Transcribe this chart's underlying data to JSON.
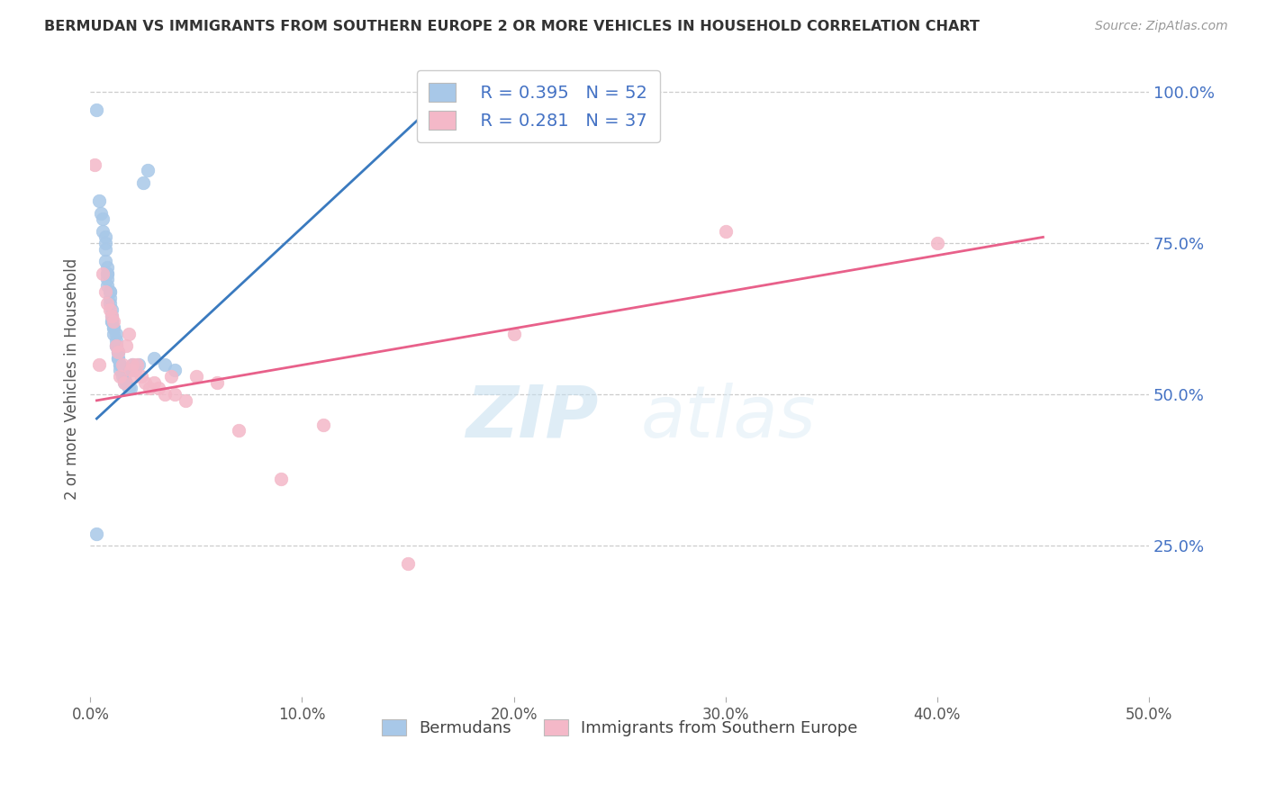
{
  "title": "BERMUDAN VS IMMIGRANTS FROM SOUTHERN EUROPE 2 OR MORE VEHICLES IN HOUSEHOLD CORRELATION CHART",
  "source": "Source: ZipAtlas.com",
  "ylabel": "2 or more Vehicles in Household",
  "xlim": [
    0.0,
    0.5
  ],
  "ylim": [
    0.0,
    1.05
  ],
  "xtick_labels": [
    "0.0%",
    "10.0%",
    "20.0%",
    "30.0%",
    "40.0%",
    "50.0%"
  ],
  "xtick_vals": [
    0.0,
    0.1,
    0.2,
    0.3,
    0.4,
    0.5
  ],
  "ytick_labels_right": [
    "100.0%",
    "75.0%",
    "50.0%",
    "25.0%"
  ],
  "ytick_vals_right": [
    1.0,
    0.75,
    0.5,
    0.25
  ],
  "legend_blue_r": "R = 0.395",
  "legend_blue_n": "N = 52",
  "legend_pink_r": "R = 0.281",
  "legend_pink_n": "N = 37",
  "legend_label_blue": "Bermudans",
  "legend_label_pink": "Immigrants from Southern Europe",
  "blue_color": "#a8c8e8",
  "pink_color": "#f4b8c8",
  "blue_line_color": "#3a7abf",
  "pink_line_color": "#e8608a",
  "blue_scatter_x": [
    0.003,
    0.004,
    0.005,
    0.006,
    0.006,
    0.007,
    0.007,
    0.007,
    0.007,
    0.008,
    0.008,
    0.008,
    0.008,
    0.008,
    0.009,
    0.009,
    0.009,
    0.009,
    0.01,
    0.01,
    0.01,
    0.01,
    0.011,
    0.011,
    0.011,
    0.012,
    0.012,
    0.012,
    0.012,
    0.013,
    0.013,
    0.013,
    0.013,
    0.014,
    0.014,
    0.014,
    0.015,
    0.015,
    0.016,
    0.016,
    0.017,
    0.018,
    0.019,
    0.02,
    0.021,
    0.023,
    0.025,
    0.027,
    0.03,
    0.035,
    0.04,
    0.003
  ],
  "blue_scatter_y": [
    0.97,
    0.82,
    0.8,
    0.79,
    0.77,
    0.76,
    0.75,
    0.74,
    0.72,
    0.71,
    0.7,
    0.7,
    0.69,
    0.68,
    0.67,
    0.67,
    0.66,
    0.65,
    0.64,
    0.63,
    0.62,
    0.62,
    0.61,
    0.61,
    0.6,
    0.6,
    0.59,
    0.58,
    0.58,
    0.57,
    0.57,
    0.56,
    0.56,
    0.55,
    0.55,
    0.54,
    0.54,
    0.53,
    0.53,
    0.52,
    0.52,
    0.51,
    0.51,
    0.55,
    0.54,
    0.55,
    0.85,
    0.87,
    0.56,
    0.55,
    0.54,
    0.27
  ],
  "pink_scatter_x": [
    0.002,
    0.004,
    0.006,
    0.007,
    0.008,
    0.009,
    0.01,
    0.011,
    0.012,
    0.013,
    0.014,
    0.015,
    0.016,
    0.017,
    0.018,
    0.019,
    0.02,
    0.021,
    0.022,
    0.024,
    0.026,
    0.028,
    0.03,
    0.032,
    0.035,
    0.038,
    0.04,
    0.045,
    0.05,
    0.06,
    0.07,
    0.09,
    0.11,
    0.15,
    0.2,
    0.3,
    0.4
  ],
  "pink_scatter_y": [
    0.88,
    0.55,
    0.7,
    0.67,
    0.65,
    0.64,
    0.63,
    0.62,
    0.58,
    0.57,
    0.53,
    0.55,
    0.52,
    0.58,
    0.6,
    0.54,
    0.55,
    0.53,
    0.55,
    0.53,
    0.52,
    0.51,
    0.52,
    0.51,
    0.5,
    0.53,
    0.5,
    0.49,
    0.53,
    0.52,
    0.44,
    0.36,
    0.45,
    0.22,
    0.6,
    0.77,
    0.75
  ],
  "blue_line_x0": 0.003,
  "blue_line_x1": 0.175,
  "blue_line_y0": 0.46,
  "blue_line_y1": 1.02,
  "pink_line_x0": 0.003,
  "pink_line_x1": 0.45,
  "pink_line_y0": 0.49,
  "pink_line_y1": 0.76,
  "watermark_zip": "ZIP",
  "watermark_atlas": "atlas",
  "background_color": "#ffffff",
  "grid_color": "#cccccc"
}
